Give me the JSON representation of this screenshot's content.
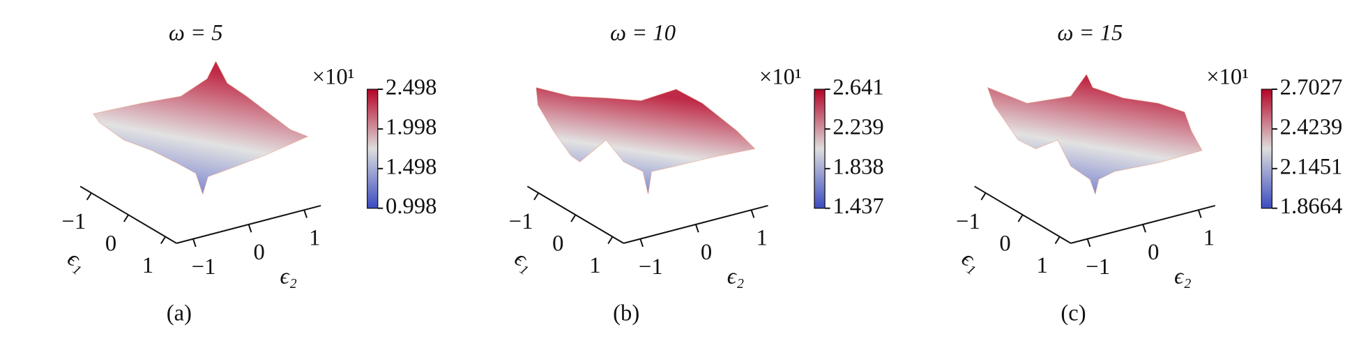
{
  "chart_data": [
    {
      "type": "surface",
      "title": "ω = 5",
      "caption": "(a)",
      "xlabel": "ϵ₁",
      "ylabel": "ϵ₂",
      "xlim": [
        -1.3,
        1.3
      ],
      "xticks": [
        {
          "value": -1,
          "label": "−1"
        },
        0,
        1
      ],
      "ylim": [
        -1.3,
        1.3
      ],
      "yticks": [
        {
          "value": -1,
          "label": "−1"
        },
        0,
        1
      ],
      "colors": [
        "#3b4cc0",
        "#dddddd",
        "#b40426"
      ],
      "colorbar": {
        "label": "×10¹",
        "clim": [
          0.998,
          2.498
        ],
        "ticks": [
          0.998,
          1.498,
          1.998,
          2.498
        ]
      }
    },
    {
      "type": "surface",
      "title": "ω = 10",
      "caption": "(b)",
      "xlabel": "ϵ₁",
      "ylabel": "ϵ₂",
      "xlim": [
        -1.3,
        1.3
      ],
      "xticks": [
        {
          "value": -1,
          "label": "−1"
        },
        0,
        1
      ],
      "ylim": [
        -1.3,
        1.3
      ],
      "yticks": [
        {
          "value": -1,
          "label": "−1"
        },
        0,
        1
      ],
      "colors": [
        "#3b4cc0",
        "#dddddd",
        "#b40426"
      ],
      "colorbar": {
        "label": "×10¹",
        "clim": [
          1.437,
          2.641
        ],
        "ticks": [
          1.437,
          1.838,
          2.239,
          2.641
        ]
      }
    },
    {
      "type": "surface",
      "title": "ω = 15",
      "caption": "(c)",
      "xlabel": "ϵ₁",
      "ylabel": "ϵ₂",
      "xlim": [
        -1.3,
        1.3
      ],
      "xticks": [
        {
          "value": -1,
          "label": "−1"
        },
        0,
        1
      ],
      "ylim": [
        -1.3,
        1.3
      ],
      "yticks": [
        {
          "value": -1,
          "label": "−1"
        },
        0,
        1
      ],
      "colors": [
        "#3b4cc0",
        "#dddddd",
        "#b40426"
      ],
      "colorbar": {
        "label": "×10¹",
        "clim": [
          1.8664,
          2.7027
        ],
        "ticks": [
          1.8664,
          2.1451,
          2.4239,
          2.7027
        ]
      }
    }
  ]
}
